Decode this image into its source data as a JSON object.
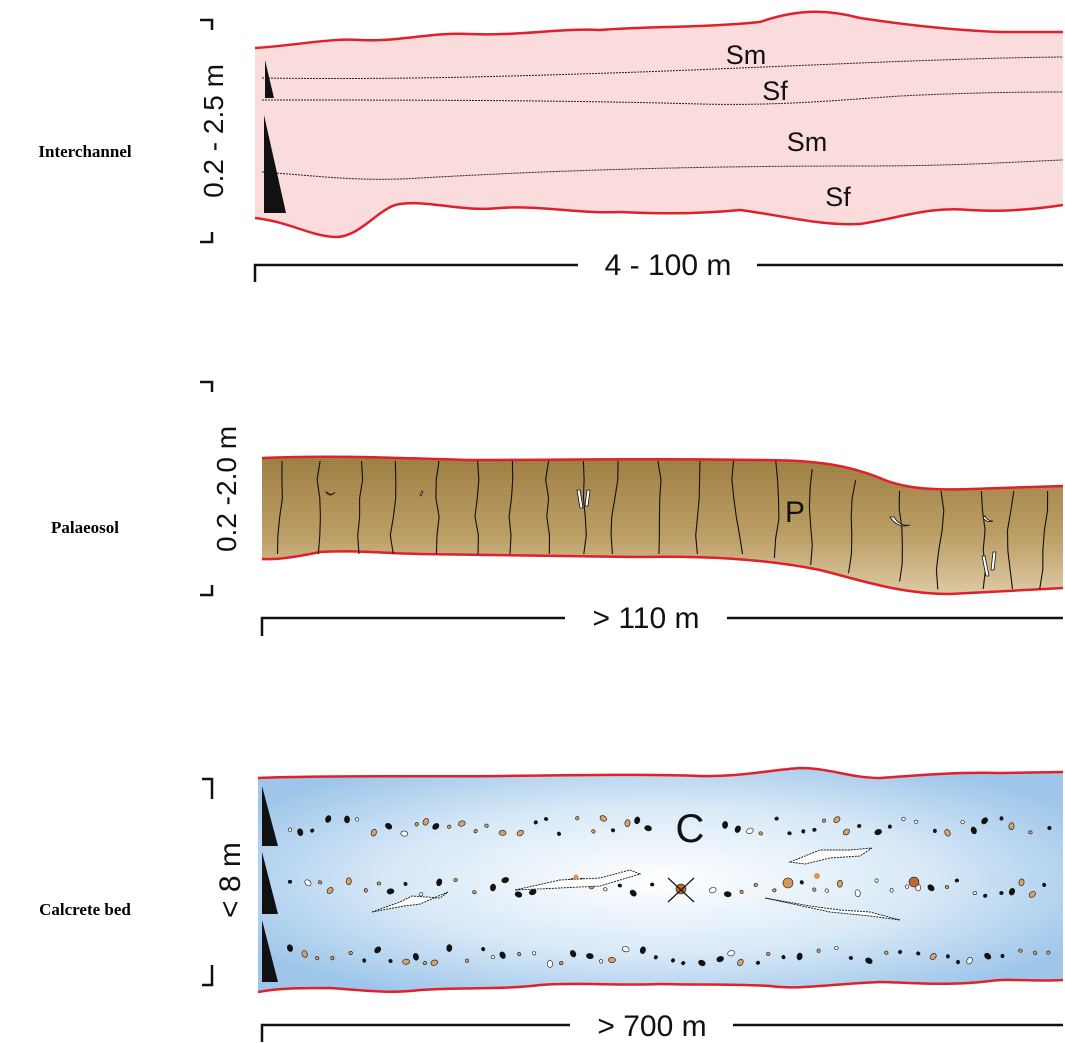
{
  "panels": [
    {
      "name": "Interchannel",
      "thickness": "0.2 - 2.5 m",
      "width": "4 - 100 m",
      "units": [
        "Sm",
        "Sf",
        "Sm",
        "Sf"
      ],
      "fill_color": "#fbdcdc",
      "boundary_color": "#e0202a"
    },
    {
      "name": "Palaeosol",
      "thickness": "0.2 -2.0 m",
      "width": "> 110 m",
      "units": [
        "P"
      ],
      "fill_color": "#a88748",
      "boundary_color": "#e0202a"
    },
    {
      "name": "Calcrete bed",
      "thickness": "< 8 m",
      "width": "> 700 m",
      "units": [
        "C"
      ],
      "fill_color": "#bcd8f0",
      "boundary_color": "#e0202a"
    }
  ]
}
